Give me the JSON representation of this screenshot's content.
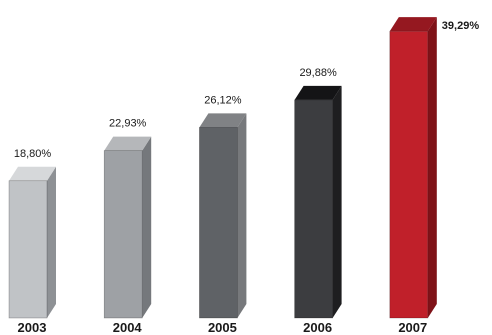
{
  "chart_data": {
    "type": "bar",
    "style": "3d-columns",
    "categories": [
      "2003",
      "2004",
      "2005",
      "2006",
      "2007"
    ],
    "values": [
      18.8,
      22.93,
      26.12,
      29.88,
      39.29
    ],
    "value_labels": [
      "18,80%",
      "22,93%",
      "26,12%",
      "29,88%",
      "39,29%"
    ],
    "highlight_index": 4,
    "ylim": [
      0,
      40
    ],
    "grid": false,
    "legend": "none",
    "title": "",
    "xlabel": "",
    "ylabel": "",
    "colors": {
      "front": [
        "#c0c3c6",
        "#9ea1a5",
        "#5f6266",
        "#3c3d40",
        "#c0202a"
      ],
      "side": [
        "#8e9195",
        "#75787c",
        "#77797c",
        "#1e1e20",
        "#7f1218"
      ],
      "top": [
        "#d6d8da",
        "#b5b7ba",
        "#808285",
        "#141416",
        "#951820"
      ]
    }
  }
}
